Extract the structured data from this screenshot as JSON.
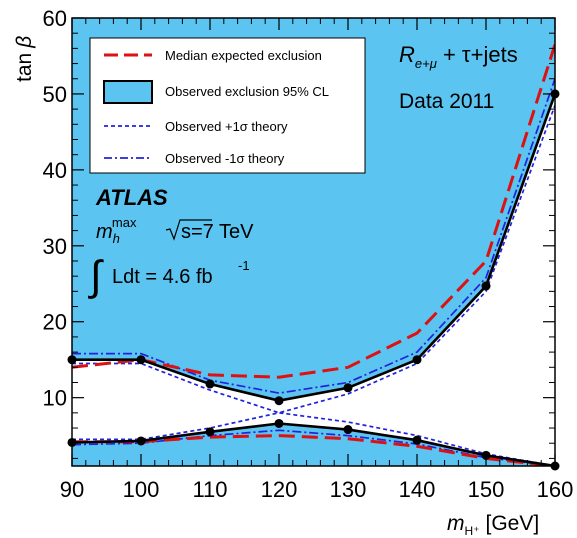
{
  "chart_data": {
    "type": "line",
    "ylabel_main": "tan",
    "ylabel_greek": "β",
    "xlabel_main": "m",
    "xlabel_sub": "H⁺",
    "xlabel_unit": "[GeV]",
    "xlim": [
      90,
      160
    ],
    "ylim": [
      1,
      60
    ],
    "x_ticks": [
      90,
      100,
      110,
      120,
      130,
      140,
      150,
      160
    ],
    "y_ticks": [
      10,
      20,
      30,
      40,
      50,
      60
    ],
    "legend_position": "top-left",
    "fill_color": "#5bc4f0",
    "series": [
      {
        "name": "Median expected exclusion",
        "style": "dashed",
        "color": "#dd1111",
        "upper": {
          "x": [
            90,
            100,
            110,
            120,
            130,
            140,
            150,
            160
          ],
          "y": [
            14.0,
            15.0,
            13.0,
            12.7,
            14.0,
            18.5,
            28.0,
            56.5
          ]
        },
        "lower": {
          "x": [
            90,
            100,
            110,
            120,
            130,
            140,
            150,
            160
          ],
          "y": [
            4.2,
            4.2,
            4.8,
            5.0,
            4.6,
            3.6,
            2.0,
            1.0
          ]
        }
      },
      {
        "name": "Observed exclusion 95% CL",
        "style": "solid",
        "color": "#000000",
        "upper": {
          "x": [
            90,
            100,
            110,
            120,
            130,
            140,
            150,
            160
          ],
          "y": [
            15.0,
            15.0,
            11.8,
            9.6,
            11.3,
            15.0,
            24.7,
            50.0
          ]
        },
        "lower": {
          "x": [
            90,
            100,
            110,
            120,
            130,
            140,
            150,
            160
          ],
          "y": [
            4.1,
            4.3,
            5.5,
            6.6,
            5.8,
            4.4,
            2.4,
            1.0
          ]
        }
      },
      {
        "name": "Observed +1σ theory",
        "style": "dotted",
        "color": "#2222dd",
        "upper": {
          "x": [
            90,
            100,
            110,
            120,
            130,
            140,
            150,
            160
          ],
          "y": [
            14.5,
            14.5,
            11.0,
            8.0,
            10.5,
            14.5,
            24.0,
            48.5
          ]
        },
        "lower": {
          "x": [
            90,
            100,
            110,
            120,
            130,
            140,
            150,
            160
          ],
          "y": [
            4.5,
            4.5,
            6.0,
            8.0,
            6.8,
            5.0,
            2.6,
            1.0
          ]
        }
      },
      {
        "name": "Observed -1σ theory",
        "style": "dashdot",
        "color": "#2222dd",
        "upper": {
          "x": [
            90,
            100,
            110,
            120,
            130,
            140,
            150,
            160
          ],
          "y": [
            15.8,
            15.8,
            12.3,
            10.6,
            12.0,
            16.0,
            25.8,
            52.0
          ]
        },
        "lower": {
          "x": [
            90,
            100,
            110,
            120,
            130,
            140,
            150,
            160
          ],
          "y": [
            3.8,
            4.0,
            5.0,
            5.7,
            5.0,
            3.9,
            2.1,
            1.0
          ]
        }
      }
    ],
    "annotations": {
      "channel_main": "R",
      "channel_sub": "e+μ",
      "channel_rest": " + τ+jets",
      "dataset": "Data 2011",
      "experiment": "ATLAS",
      "scenario_main": "m",
      "scenario_sub": "h",
      "scenario_sup": "max",
      "energy": "s=7 TeV",
      "lumi": "Ldt = 4.6 fb",
      "lumi_sup": "-1"
    }
  }
}
